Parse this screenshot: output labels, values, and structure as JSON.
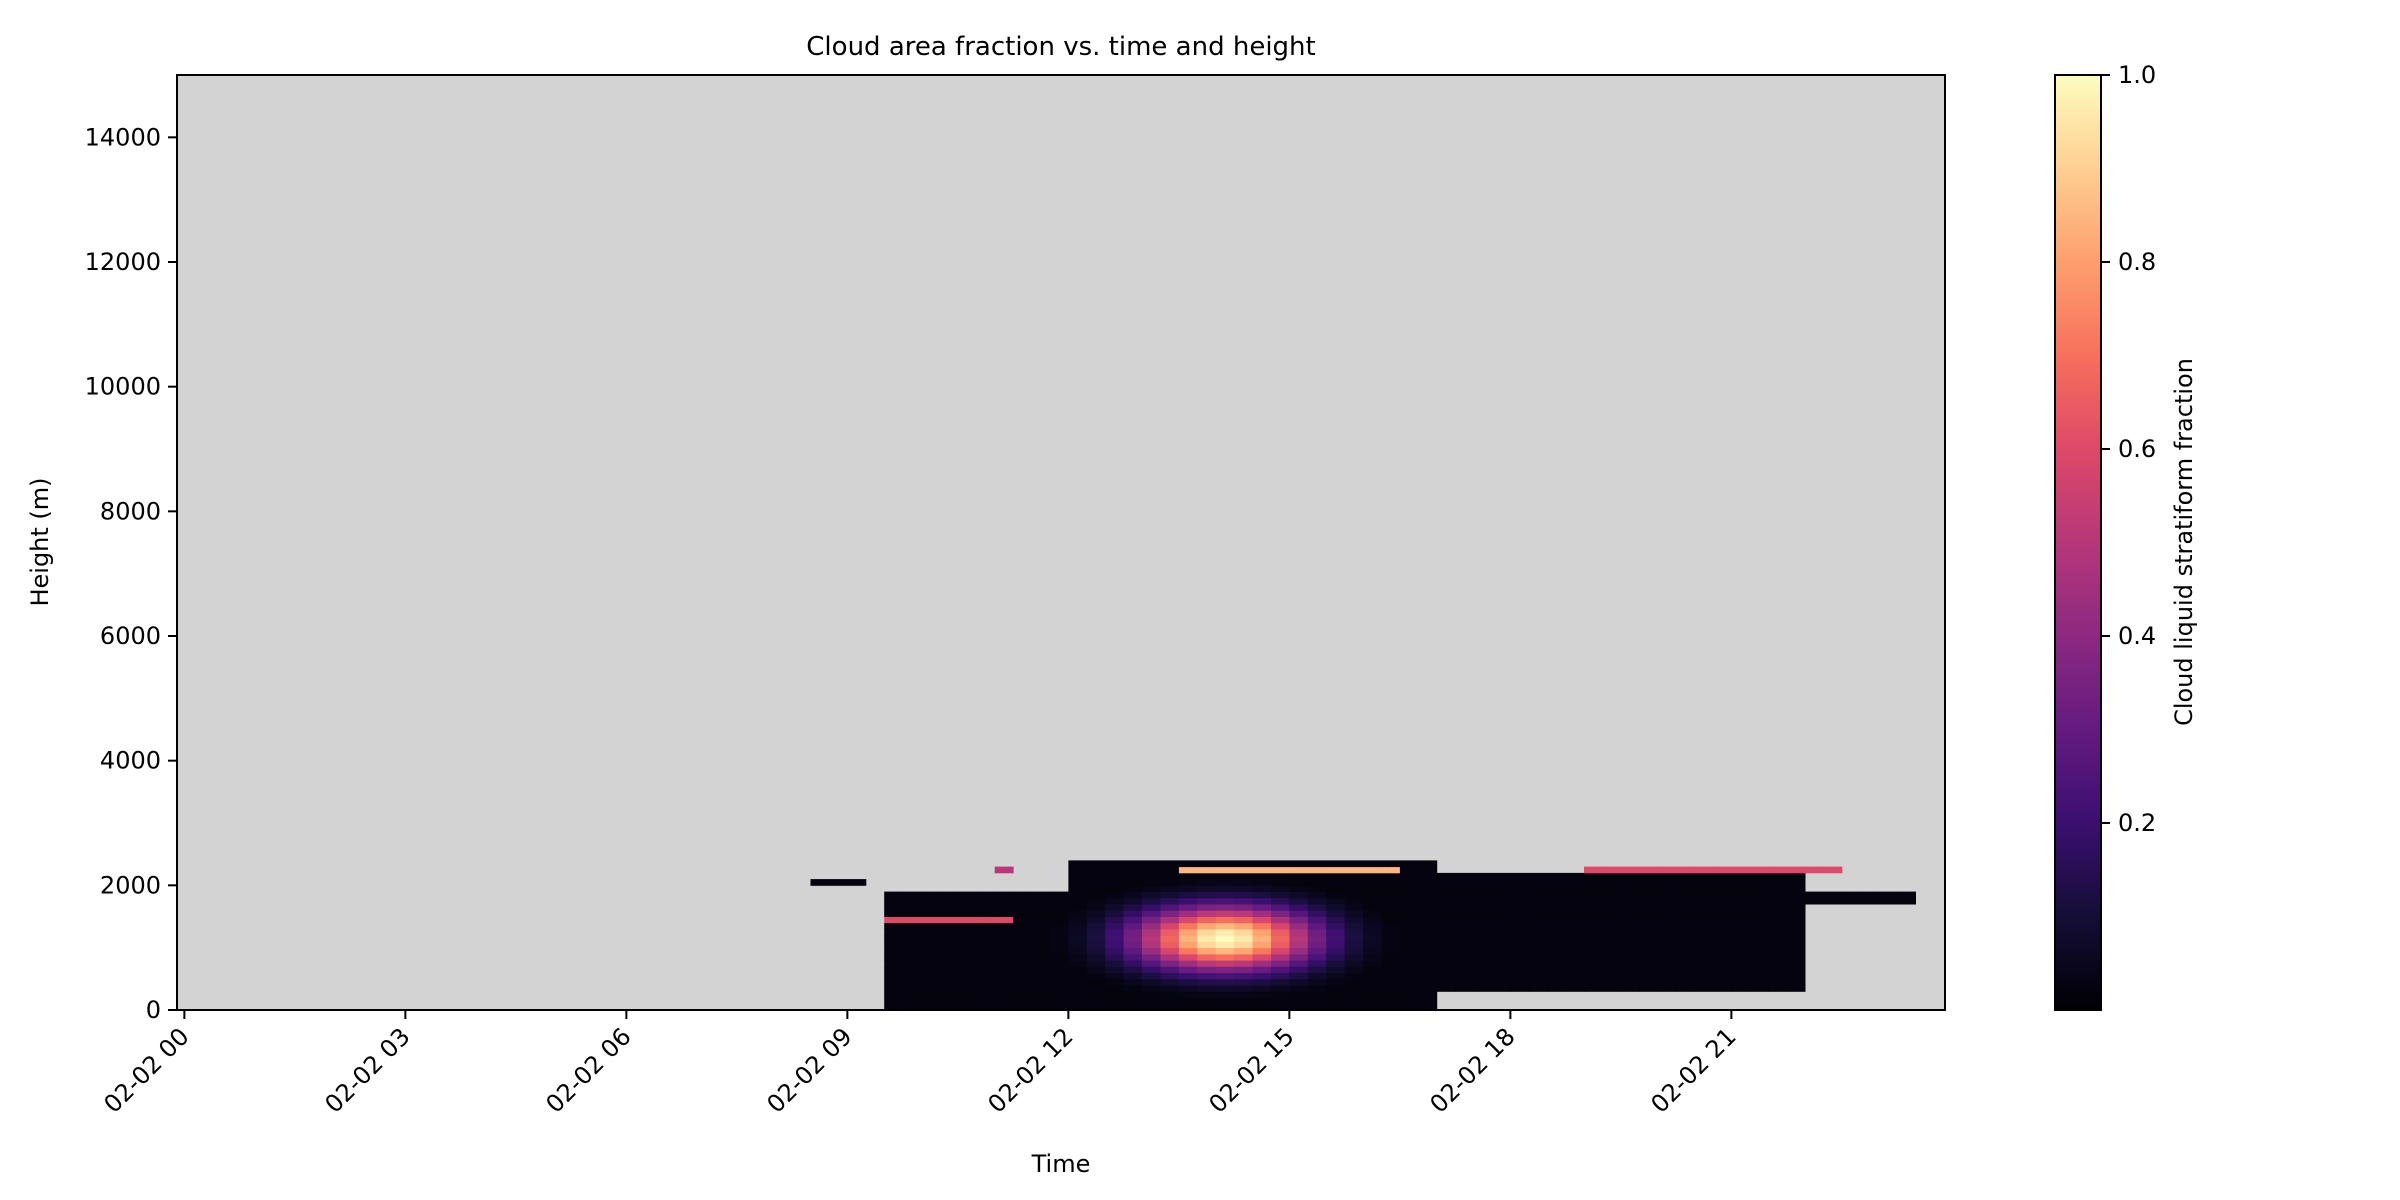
{
  "chart_data": {
    "type": "heatmap",
    "title": "Cloud area fraction vs. time and height",
    "xlabel": "Time",
    "ylabel": "Height (m)",
    "x_ticks": [
      "02-02 00",
      "02-02 03",
      "02-02 06",
      "02-02 09",
      "02-02 12",
      "02-02 15",
      "02-02 18",
      "02-02 21"
    ],
    "x_tick_hours": [
      0,
      3,
      6,
      9,
      12,
      15,
      18,
      21
    ],
    "x_range_hours": [
      -0.1,
      23.9
    ],
    "y_ticks": [
      0,
      2000,
      4000,
      6000,
      8000,
      10000,
      12000,
      14000
    ],
    "ylim": [
      0,
      15000
    ],
    "colorbar": {
      "label": "Cloud liquid stratiform fraction",
      "colormap": "magma",
      "range": [
        0.0,
        1.0
      ],
      "ticks": [
        0.2,
        0.4,
        0.6,
        0.8,
        1.0
      ]
    },
    "missing_color": "#d3d3d3",
    "cell_size": {
      "hours": 0.25,
      "meters": 100
    },
    "cloud_bounds": [
      {
        "t0": 9.5,
        "t1": 12.0,
        "h0": 0,
        "h1": 1900
      },
      {
        "t0": 12.0,
        "t1": 17.0,
        "h0": 0,
        "h1": 2400
      },
      {
        "t0": 17.0,
        "t1": 22.0,
        "h0": 300,
        "h1": 2200
      },
      {
        "t0": 22.0,
        "t1": 23.5,
        "h0": 1700,
        "h1": 1900
      }
    ],
    "regions": [
      {
        "desc": "core",
        "t_center": 14.0,
        "h_center": 1100,
        "t_spread": 1.2,
        "h_spread": 500,
        "value": 1.0
      },
      {
        "desc": "layer",
        "t0": 9.5,
        "t1": 11.2,
        "h0": 1400,
        "h1": 1500,
        "value": 0.6
      },
      {
        "desc": "upper band",
        "t0": 13.5,
        "t1": 16.5,
        "h0": 2200,
        "h1": 2300,
        "value": 0.85
      },
      {
        "desc": "right band",
        "t0": 19.0,
        "t1": 22.5,
        "h0": 2200,
        "h1": 2300,
        "value": 0.6
      },
      {
        "desc": "isolated patch",
        "t0": 8.3,
        "t1": 9.1,
        "h0": 2000,
        "h1": 2100,
        "value": 0.0
      },
      {
        "desc": "small patch",
        "t0": 10.8,
        "t1": 11.2,
        "h0": 2200,
        "h1": 2300,
        "value": 0.5
      }
    ]
  }
}
